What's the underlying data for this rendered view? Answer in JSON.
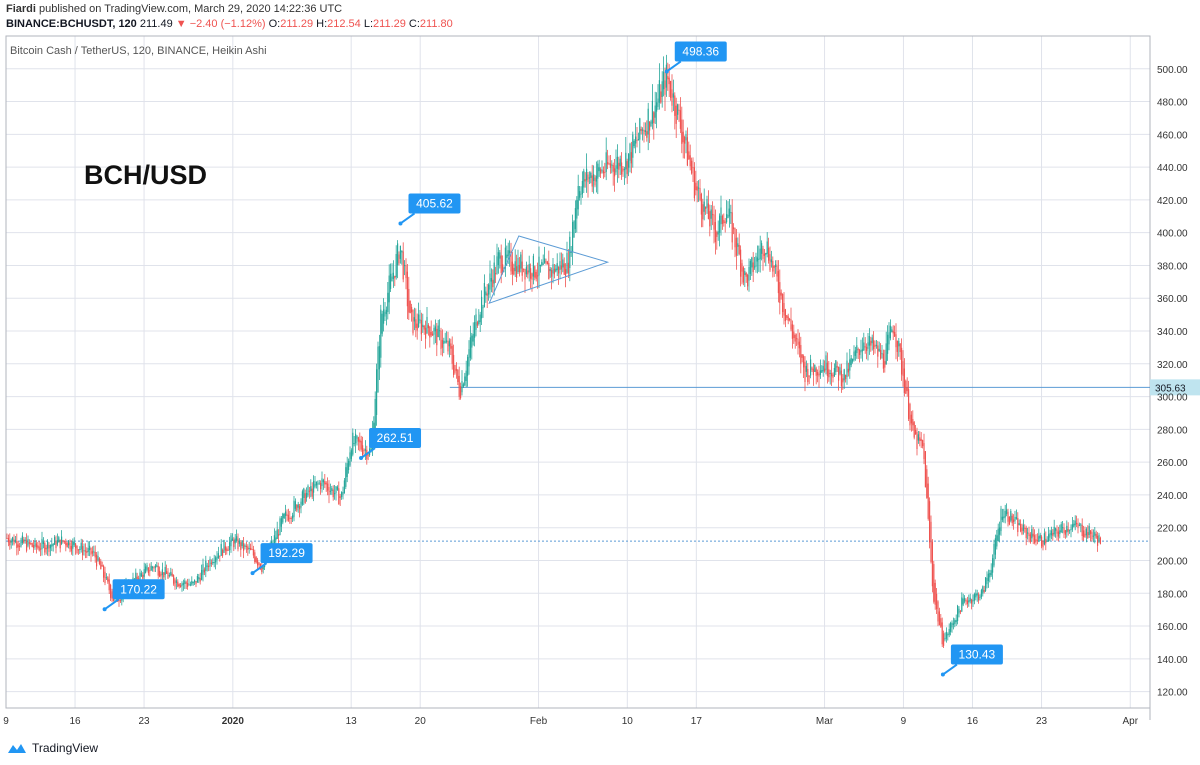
{
  "header": {
    "author": "Fiardi",
    "published": "published on TradingView.com, March 29, 2020 14:22:36 UTC",
    "symbol": "BINANCE:BCHUSDT, 120",
    "last": "211.49",
    "change_arrow": "▼",
    "change": "−2.40 (−1.12%)",
    "open_label": "O:",
    "open": "211.29",
    "high_label": "H:",
    "high": "212.54",
    "low_label": "L:",
    "low": "211.29",
    "close_label": "C:",
    "close": "211.80"
  },
  "footer": {
    "brand": "TradingView"
  },
  "colors": {
    "up": "#26a69a",
    "down": "#ef5350",
    "callout": "#2196f3",
    "line": "#5b9bd5",
    "grid": "#e0e3eb"
  },
  "chart_data": {
    "type": "line",
    "title": "Bitcoin Cash / TetherUS, 120, BINANCE, Heikin Ashi",
    "annotation_text": "BCH/USD",
    "style": "heikin-ashi candles (green up, red down)",
    "ylim": [
      110,
      520
    ],
    "y_ticks": [
      "120.00",
      "140.00",
      "160.00",
      "180.00",
      "200.00",
      "220.00",
      "240.00",
      "260.00",
      "280.00",
      "300.00",
      "320.00",
      "340.00",
      "360.00",
      "380.00",
      "400.00",
      "420.00",
      "440.00",
      "460.00",
      "480.00",
      "500.00"
    ],
    "x_ticks": [
      {
        "label": "9",
        "date": "2019-12-09"
      },
      {
        "label": "16",
        "date": "2019-12-16"
      },
      {
        "label": "23",
        "date": "2019-12-23"
      },
      {
        "label": "2020",
        "date": "2020-01-01"
      },
      {
        "label": "13",
        "date": "2020-01-13"
      },
      {
        "label": "20",
        "date": "2020-01-20"
      },
      {
        "label": "Feb",
        "date": "2020-02-01"
      },
      {
        "label": "10",
        "date": "2020-02-10"
      },
      {
        "label": "17",
        "date": "2020-02-17"
      },
      {
        "label": "Mar",
        "date": "2020-03-01"
      },
      {
        "label": "9",
        "date": "2020-03-09"
      },
      {
        "label": "16",
        "date": "2020-03-16"
      },
      {
        "label": "23",
        "date": "2020-03-23"
      },
      {
        "label": "Apr",
        "date": "2020-04-01"
      }
    ],
    "x_range": [
      "2019-12-09",
      "2020-04-03"
    ],
    "grid": true,
    "price_path": [
      [
        "2019-12-09",
        214
      ],
      [
        "2019-12-12",
        208
      ],
      [
        "2019-12-15",
        212
      ],
      [
        "2019-12-18",
        203
      ],
      [
        "2019-12-20",
        175
      ],
      [
        "2019-12-22",
        188
      ],
      [
        "2019-12-24",
        197
      ],
      [
        "2019-12-26",
        188
      ],
      [
        "2019-12-28",
        185
      ],
      [
        "2019-12-30",
        203
      ],
      [
        "2020-01-01",
        212
      ],
      [
        "2020-01-03",
        204
      ],
      [
        "2020-01-04",
        196
      ],
      [
        "2020-01-06",
        224
      ],
      [
        "2020-01-08",
        238
      ],
      [
        "2020-01-10",
        248
      ],
      [
        "2020-01-12",
        238
      ],
      [
        "2020-01-13",
        273
      ],
      [
        "2020-01-15",
        266
      ],
      [
        "2020-01-16",
        348
      ],
      [
        "2020-01-18",
        392
      ],
      [
        "2020-01-19",
        345
      ],
      [
        "2020-01-21",
        342
      ],
      [
        "2020-01-23",
        328
      ],
      [
        "2020-01-24",
        303
      ],
      [
        "2020-01-26",
        355
      ],
      [
        "2020-01-28",
        384
      ],
      [
        "2020-01-30",
        380
      ],
      [
        "2020-02-02",
        376
      ],
      [
        "2020-02-04",
        382
      ],
      [
        "2020-02-05",
        430
      ],
      [
        "2020-02-08",
        440
      ],
      [
        "2020-02-10",
        445
      ],
      [
        "2020-02-13",
        480
      ],
      [
        "2020-02-14",
        495
      ],
      [
        "2020-02-15",
        475
      ],
      [
        "2020-02-17",
        425
      ],
      [
        "2020-02-19",
        400
      ],
      [
        "2020-02-20",
        415
      ],
      [
        "2020-02-22",
        370
      ],
      [
        "2020-02-24",
        395
      ],
      [
        "2020-02-26",
        352
      ],
      [
        "2020-02-28",
        315
      ],
      [
        "2020-03-01",
        320
      ],
      [
        "2020-03-03",
        312
      ],
      [
        "2020-03-05",
        335
      ],
      [
        "2020-03-07",
        322
      ],
      [
        "2020-03-08",
        345
      ],
      [
        "2020-03-09",
        312
      ],
      [
        "2020-03-10",
        275
      ],
      [
        "2020-03-11",
        268
      ],
      [
        "2020-03-12",
        180
      ],
      [
        "2020-03-13",
        150
      ],
      [
        "2020-03-15",
        175
      ],
      [
        "2020-03-17",
        180
      ],
      [
        "2020-03-18",
        200
      ],
      [
        "2020-03-19",
        232
      ],
      [
        "2020-03-21",
        218
      ],
      [
        "2020-03-23",
        212
      ],
      [
        "2020-03-26",
        222
      ],
      [
        "2020-03-28",
        216
      ],
      [
        "2020-03-29",
        211.8
      ]
    ],
    "peak_labels": [
      {
        "date": "2019-12-19",
        "value": 170.22,
        "label": "170.22"
      },
      {
        "date": "2020-01-03",
        "value": 192.29,
        "label": "192.29"
      },
      {
        "date": "2020-01-14",
        "value": 262.51,
        "label": "262.51"
      },
      {
        "date": "2020-01-18",
        "value": 405.62,
        "label": "405.62"
      },
      {
        "date": "2020-02-14",
        "value": 498.36,
        "label": "498.36"
      },
      {
        "date": "2020-03-13",
        "value": 130.43,
        "label": "130.43"
      }
    ],
    "horizontal_lines": [
      {
        "value": 305.63,
        "label": "305.63",
        "from": "2020-01-23"
      },
      {
        "value": 211.8,
        "from": "2019-12-09"
      }
    ],
    "triangle": [
      [
        "2020-01-27",
        357
      ],
      [
        "2020-01-30",
        398
      ],
      [
        "2020-02-08",
        382
      ]
    ]
  }
}
